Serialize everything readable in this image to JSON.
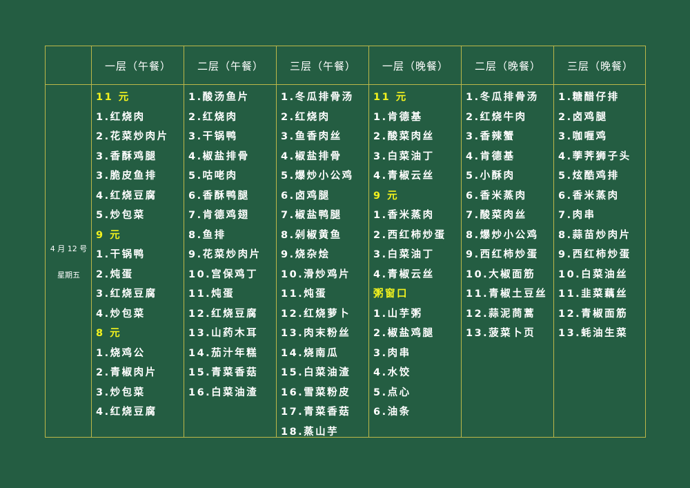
{
  "date": "4 月 12 号",
  "weekday": "星期五",
  "headers": [
    "一层（午餐）",
    "二层（午餐）",
    "三层（午餐）",
    "一层（晚餐）",
    "二层（晚餐）",
    "三层（晚餐）"
  ],
  "colors": {
    "background": "#245d42",
    "border": "#bdb84a",
    "price_text": "#f2f21e",
    "text": "#ffffff"
  },
  "columns": [
    [
      {
        "t": "11 元",
        "p": true
      },
      {
        "t": "1.红烧肉"
      },
      {
        "t": "2.花菜炒肉片"
      },
      {
        "t": "3.香酥鸡腿"
      },
      {
        "t": "3.脆皮鱼排"
      },
      {
        "t": "4.红烧豆腐"
      },
      {
        "t": "5.炒包菜"
      },
      {
        "t": "9 元",
        "p": true
      },
      {
        "t": "1.干锅鸭"
      },
      {
        "t": "2.炖蛋"
      },
      {
        "t": "3.红烧豆腐"
      },
      {
        "t": "4.炒包菜"
      },
      {
        "t": "8 元",
        "p": true
      },
      {
        "t": "1.烧鸡公"
      },
      {
        "t": "2.青椒肉片"
      },
      {
        "t": "3.炒包菜"
      },
      {
        "t": "4.红烧豆腐"
      }
    ],
    [
      {
        "t": "1.酸汤鱼片"
      },
      {
        "t": "2.红烧肉"
      },
      {
        "t": "3.干锅鸭"
      },
      {
        "t": "4.椒盐排骨"
      },
      {
        "t": "5.咕咾肉"
      },
      {
        "t": "6.香酥鸭腿"
      },
      {
        "t": "7.肯德鸡翅"
      },
      {
        "t": "8.鱼排"
      },
      {
        "t": "9.花菜炒肉片"
      },
      {
        "t": "10.宫保鸡丁"
      },
      {
        "t": "11.炖蛋"
      },
      {
        "t": "12.红烧豆腐"
      },
      {
        "t": "13.山药木耳"
      },
      {
        "t": "14.茄汁年糕"
      },
      {
        "t": "15.青菜香菇"
      },
      {
        "t": "16.白菜油渣"
      }
    ],
    [
      {
        "t": "1.冬瓜排骨汤"
      },
      {
        "t": "2.红烧肉"
      },
      {
        "t": "3.鱼香肉丝"
      },
      {
        "t": "4.椒盐排骨"
      },
      {
        "t": "5.爆炒小公鸡"
      },
      {
        "t": "6.卤鸡腿"
      },
      {
        "t": "7.椒盐鸭腿"
      },
      {
        "t": "8.剁椒黄鱼"
      },
      {
        "t": "9.烧杂烩"
      },
      {
        "t": "10.滑炒鸡片"
      },
      {
        "t": "11.炖蛋"
      },
      {
        "t": "12.红烧萝卜"
      },
      {
        "t": "13.肉末粉丝"
      },
      {
        "t": "14.烧南瓜"
      },
      {
        "t": "15.白菜油渣"
      },
      {
        "t": "16.雪菜粉皮"
      },
      {
        "t": "17.青菜香菇"
      },
      {
        "t": "18.蒸山芋"
      }
    ],
    [
      {
        "t": "11 元",
        "p": true
      },
      {
        "t": "1.肯德基"
      },
      {
        "t": "2.酸菜肉丝"
      },
      {
        "t": "3.白菜油丁"
      },
      {
        "t": "4.青椒云丝"
      },
      {
        "t": "9 元",
        "p": true
      },
      {
        "t": "1.香米蒸肉"
      },
      {
        "t": "2.西红柿炒蛋"
      },
      {
        "t": "3.白菜油丁"
      },
      {
        "t": "4.青椒云丝"
      },
      {
        "t": "粥窗口",
        "p": true
      },
      {
        "t": "1.山芋粥"
      },
      {
        "t": "2.椒盐鸡腿"
      },
      {
        "t": "3.肉串"
      },
      {
        "t": "4.水饺"
      },
      {
        "t": "5.点心"
      },
      {
        "t": "6.油条"
      }
    ],
    [
      {
        "t": "1.冬瓜排骨汤"
      },
      {
        "t": "2.红烧牛肉"
      },
      {
        "t": "3.香辣蟹"
      },
      {
        "t": "4.肯德基"
      },
      {
        "t": "5.小酥肉"
      },
      {
        "t": "6.香米蒸肉"
      },
      {
        "t": "7.酸菜肉丝"
      },
      {
        "t": "8.爆炒小公鸡"
      },
      {
        "t": "9.西红柿炒蛋"
      },
      {
        "t": "10.大椒面筋"
      },
      {
        "t": "11.青椒土豆丝"
      },
      {
        "t": "12.蒜泥茼蒿"
      },
      {
        "t": "13.菠菜卜页"
      }
    ],
    [
      {
        "t": "1.糖醋仔排"
      },
      {
        "t": "2.卤鸡腿"
      },
      {
        "t": "3.咖喱鸡"
      },
      {
        "t": "4.荸荠狮子头"
      },
      {
        "t": "5.炫酷鸡排"
      },
      {
        "t": "6.香米蒸肉"
      },
      {
        "t": "7.肉串"
      },
      {
        "t": "8.蒜苗炒肉片"
      },
      {
        "t": "9.西红柿炒蛋"
      },
      {
        "t": "10.白菜油丝"
      },
      {
        "t": "11.韭菜藕丝"
      },
      {
        "t": "12.青椒面筋"
      },
      {
        "t": "13.蚝油生菜"
      }
    ]
  ]
}
